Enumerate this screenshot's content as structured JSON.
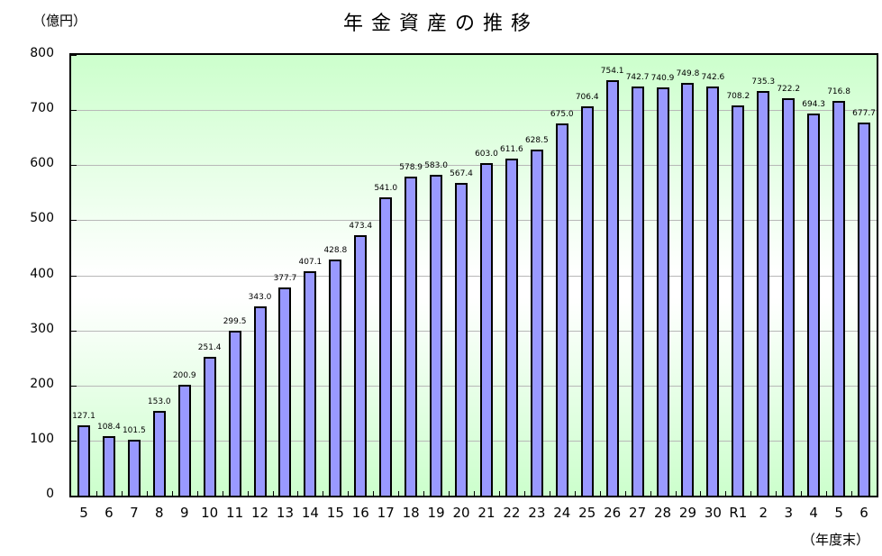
{
  "chart_data": {
    "type": "bar",
    "title": "年金資産の推移",
    "ylabel": "（億円）",
    "xlabel": "（年度末）",
    "ylim": [
      0,
      800
    ],
    "yticks": [
      0,
      100,
      200,
      300,
      400,
      500,
      600,
      700,
      800
    ],
    "grid": true,
    "bar_color": "#9999ff",
    "background_gradient": [
      "#ccffcc",
      "#ffffff",
      "#ccffcc"
    ],
    "categories": [
      "5",
      "6",
      "7",
      "8",
      "9",
      "10",
      "11",
      "12",
      "13",
      "14",
      "15",
      "16",
      "17",
      "18",
      "19",
      "20",
      "21",
      "22",
      "23",
      "24",
      "25",
      "26",
      "27",
      "28",
      "29",
      "30",
      "R1",
      "2",
      "3",
      "4",
      "5",
      "6"
    ],
    "values": [
      127.1,
      108.4,
      101.5,
      153.0,
      200.9,
      251.4,
      299.5,
      343.0,
      377.7,
      407.1,
      428.8,
      473.4,
      541.0,
      578.9,
      583.0,
      567.4,
      603.0,
      611.6,
      628.5,
      675.0,
      706.4,
      754.1,
      742.7,
      740.9,
      749.8,
      742.6,
      708.2,
      735.3,
      722.2,
      694.3,
      716.8,
      677.7
    ],
    "value_labels": [
      "127.1",
      "108.4",
      "101.5",
      "153.0",
      "200.9",
      "251.4",
      "299.5",
      "343.0",
      "377.7",
      "407.1",
      "428.8",
      "473.4",
      "541.0",
      "578.9",
      "583.0",
      "567.4",
      "603.0",
      "611.6",
      "628.5",
      "675.0",
      "706.4",
      "754.1",
      "742.7",
      "740.9",
      "749.8",
      "742.6",
      "708.2",
      "735.3",
      "722.2",
      "694.3",
      "716.8",
      "677.7"
    ]
  }
}
